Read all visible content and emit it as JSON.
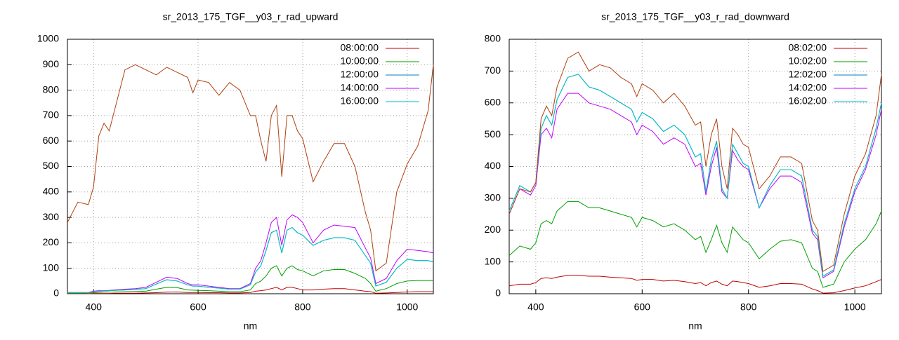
{
  "chart_data": [
    {
      "type": "line",
      "title": "sr_2013_175_TGF__y03_r_rad_upward",
      "xlabel": "nm",
      "x": [
        350,
        370,
        390,
        400,
        410,
        420,
        430,
        440,
        460,
        480,
        500,
        520,
        540,
        560,
        580,
        590,
        600,
        620,
        640,
        660,
        680,
        700,
        710,
        720,
        730,
        740,
        750,
        760,
        770,
        780,
        790,
        800,
        820,
        840,
        860,
        880,
        900,
        920,
        930,
        940,
        960,
        980,
        1000,
        1020,
        1040,
        1050
      ],
      "xlim": [
        350,
        1050
      ],
      "xticks": [
        400,
        600,
        800,
        1000
      ],
      "ylim": [
        0,
        1000
      ],
      "yticks": [
        0,
        100,
        200,
        300,
        400,
        500,
        600,
        700,
        800,
        900,
        1000
      ],
      "grid": true,
      "legend": "top-right",
      "series": [
        {
          "name": "08:00:00",
          "color": "#c00000",
          "values": [
            0,
            0,
            0,
            1,
            1,
            1,
            1,
            2,
            2,
            2,
            3,
            4,
            6,
            7,
            5,
            5,
            5,
            4,
            4,
            3,
            3,
            5,
            10,
            12,
            15,
            20,
            25,
            15,
            25,
            25,
            20,
            15,
            15,
            18,
            20,
            20,
            15,
            10,
            8,
            2,
            3,
            5,
            7,
            8,
            8,
            8
          ]
        },
        {
          "name": "10:00:00",
          "color": "#00a000",
          "values": [
            2,
            2,
            3,
            4,
            5,
            6,
            6,
            7,
            8,
            9,
            10,
            18,
            25,
            24,
            15,
            14,
            13,
            12,
            10,
            8,
            8,
            15,
            40,
            50,
            70,
            100,
            110,
            70,
            100,
            110,
            95,
            90,
            70,
            90,
            95,
            95,
            80,
            60,
            40,
            10,
            20,
            40,
            50,
            52,
            52,
            52
          ]
        },
        {
          "name": "12:00:00",
          "color": "#0080c0",
          "values": [
            4,
            4,
            4,
            8,
            10,
            11,
            12,
            13,
            15,
            17,
            20,
            38,
            55,
            50,
            35,
            30,
            30,
            25,
            22,
            18,
            18,
            35,
            85,
            110,
            170,
            240,
            250,
            160,
            250,
            260,
            240,
            230,
            190,
            210,
            220,
            220,
            210,
            150,
            120,
            30,
            45,
            100,
            135,
            130,
            130,
            125
          ]
        },
        {
          "name": "14:00:00",
          "color": "#c000ff",
          "values": [
            5,
            5,
            5,
            10,
            12,
            12,
            13,
            15,
            18,
            20,
            25,
            45,
            65,
            60,
            40,
            35,
            35,
            30,
            25,
            20,
            20,
            40,
            100,
            130,
            200,
            280,
            300,
            190,
            290,
            310,
            300,
            280,
            200,
            250,
            270,
            265,
            260,
            180,
            140,
            40,
            60,
            130,
            175,
            170,
            165,
            160
          ]
        },
        {
          "name": "16:00:00",
          "color": "#00c0c0",
          "values": [
            4,
            4,
            4,
            8,
            10,
            11,
            12,
            13,
            15,
            17,
            20,
            38,
            55,
            50,
            35,
            30,
            30,
            25,
            22,
            18,
            18,
            35,
            85,
            110,
            170,
            240,
            250,
            160,
            250,
            260,
            240,
            230,
            190,
            210,
            220,
            220,
            210,
            150,
            120,
            30,
            45,
            100,
            135,
            130,
            130,
            125
          ]
        },
        {
          "color": "#b04010",
          "values": [
            280,
            360,
            350,
            420,
            620,
            670,
            640,
            720,
            880,
            900,
            880,
            860,
            890,
            870,
            850,
            790,
            840,
            830,
            780,
            830,
            800,
            700,
            700,
            600,
            520,
            700,
            740,
            460,
            700,
            700,
            640,
            610,
            440,
            520,
            590,
            590,
            500,
            320,
            250,
            90,
            120,
            400,
            510,
            580,
            720,
            900
          ]
        }
      ]
    },
    {
      "type": "line",
      "title": "sr_2013_175_TGF__y03_r_rad_downward",
      "xlabel": "nm",
      "x": [
        350,
        370,
        390,
        400,
        410,
        420,
        430,
        440,
        460,
        480,
        500,
        520,
        540,
        560,
        580,
        590,
        600,
        620,
        640,
        660,
        680,
        700,
        710,
        720,
        730,
        740,
        750,
        760,
        770,
        780,
        790,
        800,
        820,
        840,
        860,
        880,
        900,
        920,
        930,
        940,
        960,
        980,
        1000,
        1020,
        1040,
        1050
      ],
      "xlim": [
        350,
        1050
      ],
      "xticks": [
        400,
        600,
        800,
        1000
      ],
      "ylim": [
        0,
        800
      ],
      "yticks": [
        0,
        100,
        200,
        300,
        400,
        500,
        600,
        700,
        800
      ],
      "grid": true,
      "legend": "top-right",
      "series": [
        {
          "name": "08:02:00",
          "color": "#c00000",
          "values": [
            25,
            30,
            30,
            35,
            48,
            50,
            48,
            52,
            58,
            58,
            55,
            55,
            52,
            50,
            48,
            42,
            45,
            45,
            40,
            42,
            38,
            32,
            35,
            25,
            35,
            40,
            30,
            25,
            40,
            38,
            35,
            32,
            20,
            25,
            32,
            32,
            30,
            15,
            10,
            2,
            3,
            10,
            18,
            25,
            38,
            45
          ]
        },
        {
          "name": "10:02:00",
          "color": "#00a000",
          "values": [
            120,
            150,
            140,
            160,
            220,
            230,
            220,
            260,
            290,
            290,
            270,
            270,
            260,
            250,
            240,
            210,
            240,
            230,
            210,
            220,
            200,
            170,
            180,
            130,
            170,
            215,
            160,
            130,
            210,
            190,
            170,
            160,
            110,
            140,
            165,
            170,
            160,
            80,
            70,
            20,
            30,
            100,
            140,
            170,
            220,
            260
          ]
        },
        {
          "name": "12:02:00",
          "color": "#0080c0",
          "values": [
            260,
            340,
            320,
            350,
            520,
            560,
            530,
            610,
            680,
            690,
            650,
            640,
            620,
            600,
            580,
            540,
            570,
            550,
            510,
            530,
            500,
            430,
            440,
            320,
            420,
            480,
            330,
            300,
            470,
            440,
            410,
            400,
            270,
            340,
            390,
            390,
            370,
            200,
            180,
            55,
            75,
            220,
            330,
            400,
            520,
            600
          ]
        },
        {
          "name": "14:02:00",
          "color": "#c000ff",
          "values": [
            250,
            330,
            310,
            340,
            500,
            520,
            490,
            580,
            630,
            630,
            600,
            590,
            580,
            560,
            540,
            500,
            530,
            510,
            470,
            490,
            470,
            400,
            410,
            310,
            400,
            460,
            320,
            300,
            450,
            420,
            400,
            390,
            270,
            330,
            370,
            370,
            350,
            190,
            170,
            50,
            70,
            210,
            320,
            390,
            500,
            580
          ]
        },
        {
          "name": "16:02:00",
          "color": "#00c0c0",
          "values": [
            260,
            340,
            320,
            350,
            520,
            560,
            530,
            610,
            680,
            690,
            650,
            640,
            620,
            600,
            580,
            540,
            570,
            550,
            510,
            530,
            500,
            430,
            440,
            320,
            420,
            480,
            330,
            300,
            470,
            440,
            410,
            400,
            270,
            340,
            390,
            390,
            370,
            200,
            180,
            55,
            75,
            220,
            330,
            400,
            520,
            600
          ]
        },
        {
          "color": "#b04010",
          "values": [
            250,
            330,
            320,
            350,
            550,
            590,
            560,
            650,
            740,
            760,
            700,
            720,
            710,
            680,
            660,
            620,
            660,
            640,
            600,
            630,
            590,
            530,
            540,
            400,
            500,
            550,
            400,
            330,
            520,
            500,
            470,
            460,
            330,
            370,
            430,
            430,
            410,
            230,
            200,
            70,
            90,
            250,
            370,
            440,
            560,
            690
          ]
        }
      ]
    }
  ]
}
